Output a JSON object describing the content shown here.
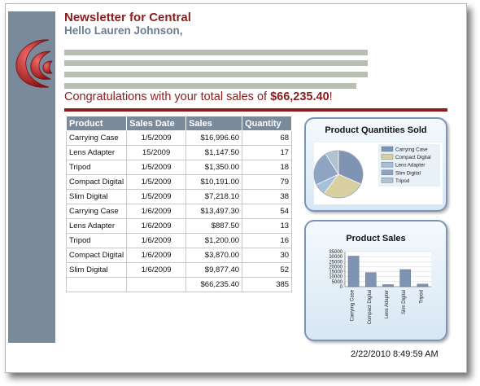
{
  "newsletter": {
    "title": "Newsletter for Central",
    "greeting": "Hello Lauren Johnson,",
    "congrats_text": "Congratulations with your total sales of ",
    "total_sales": "$66,235.40",
    "congrats_end": "!"
  },
  "table": {
    "headers": [
      "Product",
      "Sales Date",
      "Sales",
      "Quantity"
    ],
    "rows": [
      [
        "Carrying Case",
        "1/5/2009",
        "$16,996.60",
        "68"
      ],
      [
        "Lens Adapter",
        "15/2009",
        "$1,147.50",
        "17"
      ],
      [
        "Tripod",
        "1/5/2009",
        "$1,350.00",
        "18"
      ],
      [
        "Compact Digital",
        "1/5/2009",
        "$10,191.00",
        "79"
      ],
      [
        "Slim Digital",
        "1/5/2009",
        "$7,218.10",
        "38"
      ],
      [
        "Carrying Case",
        "1/6/2009",
        "$13,497.30",
        "54"
      ],
      [
        "Lens Adapter",
        "1/6/2009",
        "$887.50",
        "13"
      ],
      [
        "Tripod",
        "1/6/2009",
        "$1,200.00",
        "16"
      ],
      [
        "Compact Digital",
        "1/6/2009",
        "$3,870.00",
        "30"
      ],
      [
        "Slim Digital",
        "1/6/2009",
        "$9,877.40",
        "52"
      ]
    ],
    "totals": [
      "",
      "",
      "$66,235.40",
      "385"
    ]
  },
  "colors": {
    "accent": "#8b1d1d",
    "header_gray": "#7b8a9b",
    "greeting": "#6a7d90",
    "placeholder_bar": "#b8bfb2"
  },
  "chart_data": [
    {
      "type": "pie",
      "title": "Product Quantities Sold",
      "categories": [
        "Carrying Case",
        "Compact Digital",
        "Lens Adapter",
        "Slim Digital",
        "Tripod"
      ],
      "values": [
        122,
        109,
        30,
        90,
        34
      ],
      "colors": [
        "#7f93b2",
        "#d8d0a0",
        "#a7c0d8",
        "#8fa3c2",
        "#b3c2cf"
      ],
      "legend": "right"
    },
    {
      "type": "bar",
      "title": "Product Sales",
      "categories": [
        "Carrying Case",
        "Compact Digital",
        "Lens Adapter",
        "Slim Digital",
        "Tripod"
      ],
      "values": [
        30493.9,
        14061.0,
        2035.0,
        17095.5,
        2550.0
      ],
      "ylim": [
        0,
        35000
      ],
      "yticks": [
        "35000",
        "30000",
        "25000",
        "20000",
        "15000",
        "10000",
        "5000",
        "0"
      ],
      "grid": true,
      "color": "#7f93b2"
    }
  ],
  "footer": {
    "timestamp": "2/22/2010 8:49:59 AM"
  }
}
